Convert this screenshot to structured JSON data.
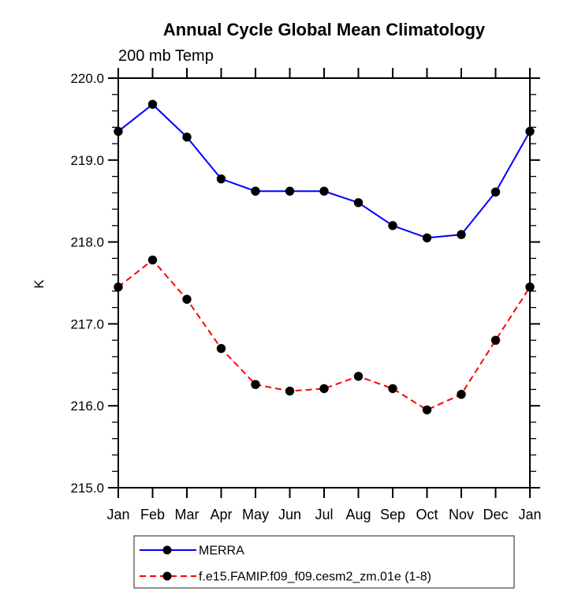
{
  "chart_data": {
    "type": "line",
    "title": "Annual Cycle Global Mean Climatology",
    "subtitle": "200 mb Temp",
    "ylabel": "K",
    "xlabel": "",
    "categories": [
      "Jan",
      "Feb",
      "Mar",
      "Apr",
      "May",
      "Jun",
      "Jul",
      "Aug",
      "Sep",
      "Oct",
      "Nov",
      "Dec",
      "Jan"
    ],
    "ylim": [
      215.0,
      220.0
    ],
    "yticks": [
      220.0,
      219.0,
      218.0,
      217.0,
      216.0,
      215.0
    ],
    "ytick_labels": [
      "220.0",
      "219.0",
      "218.0",
      "217.0",
      "216.0",
      "215.0"
    ],
    "y_minor_tick_interval": 0.2,
    "grid": false,
    "legend_position": "bottom",
    "axis_color": "#000000",
    "marker_color": "#000000",
    "series": [
      {
        "name": "MERRA",
        "color": "#0000ff",
        "style": "solid",
        "marker": "circle",
        "values": [
          219.35,
          219.68,
          219.28,
          218.77,
          218.62,
          218.62,
          218.62,
          218.48,
          218.2,
          218.05,
          218.09,
          218.61,
          219.35
        ]
      },
      {
        "name": "f.e15.FAMIP.f09_f09.cesm2_zm.01e (1-8)",
        "color": "#ff0000",
        "style": "dashed",
        "marker": "circle",
        "values": [
          217.45,
          217.78,
          217.3,
          216.7,
          216.26,
          216.18,
          216.21,
          216.36,
          216.21,
          215.95,
          216.14,
          216.8,
          217.45
        ]
      }
    ]
  }
}
